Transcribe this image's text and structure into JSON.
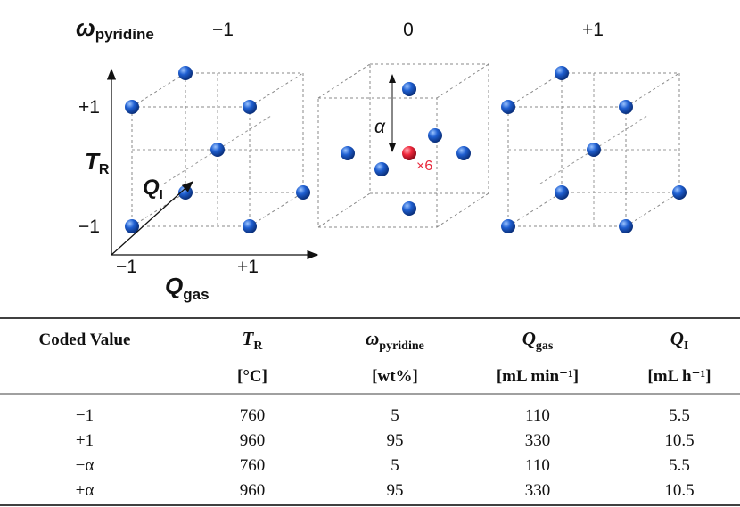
{
  "diagram": {
    "factor_label": {
      "symbol": "ω",
      "sub": "pyridine"
    },
    "levels": [
      "−1",
      "0",
      "+1"
    ],
    "y_axis": {
      "symbol": "T",
      "sub": "R",
      "ticks": [
        "+1",
        "−1"
      ]
    },
    "z_axis": {
      "symbol": "Q",
      "sub": "I"
    },
    "x_axis": {
      "symbol": "Q",
      "sub": "gas",
      "ticks": [
        "−1",
        "+1"
      ]
    },
    "alpha": "α",
    "center_count": "×6"
  },
  "table": {
    "header": [
      {
        "text": "Coded Value"
      },
      {
        "symbol": "T",
        "sub": "R"
      },
      {
        "symbol": "ω",
        "sub": "pyridine"
      },
      {
        "symbol": "Q",
        "sub": "gas"
      },
      {
        "symbol": "Q",
        "sub": "I"
      }
    ],
    "units": [
      "[°C]",
      "[wt%]",
      "[mL min⁻¹]",
      "[mL h⁻¹]"
    ],
    "rows": [
      [
        "−1",
        760,
        5,
        110,
        5.5
      ],
      [
        "+1",
        960,
        95,
        330,
        10.5
      ],
      [
        "−α",
        760,
        5,
        110,
        5.5
      ],
      [
        "+α",
        960,
        95,
        330,
        10.5
      ]
    ]
  }
}
